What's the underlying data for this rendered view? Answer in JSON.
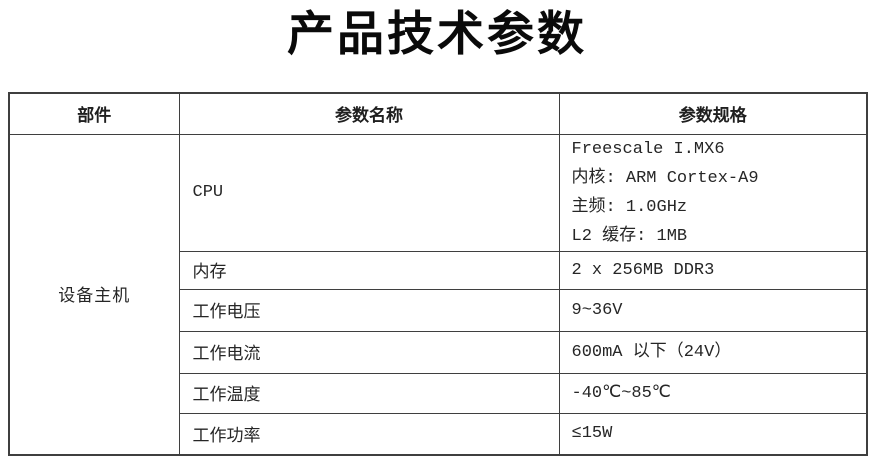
{
  "page": {
    "title": "产品技术参数"
  },
  "table": {
    "headers": [
      "部件",
      "参数名称",
      "参数规格"
    ],
    "component_group": "设备主机",
    "rows": [
      {
        "name": "CPU",
        "spec_lines": [
          "Freescale I.MX6",
          "内核: ARM Cortex-A9",
          "主频: 1.0GHz",
          "L2 缓存: 1MB"
        ]
      },
      {
        "name": "内存",
        "spec_lines": [
          "2 x 256MB DDR3"
        ]
      },
      {
        "name": "工作电压",
        "spec_lines": [
          "9~36V"
        ]
      },
      {
        "name": "工作电流",
        "spec_lines": [
          "600mA 以下（24V）"
        ]
      },
      {
        "name": "工作温度",
        "spec_lines": [
          "-40℃~85℃"
        ]
      },
      {
        "name": "工作功率",
        "spec_lines": [
          "≤15W"
        ]
      }
    ]
  }
}
